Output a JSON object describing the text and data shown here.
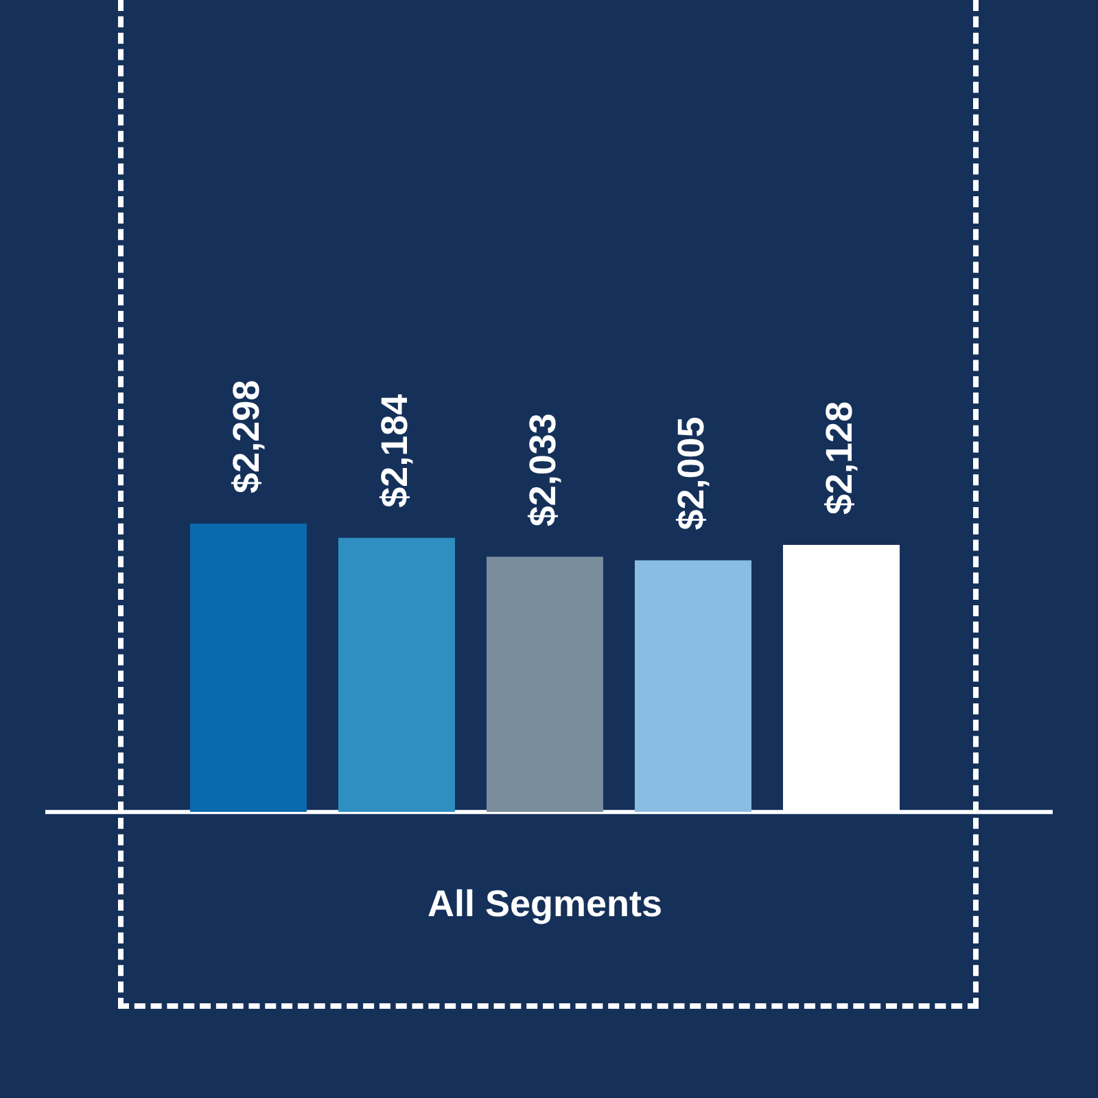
{
  "chart_data": {
    "type": "bar",
    "categories": [
      null,
      null,
      null,
      null,
      null
    ],
    "xlabel": "All Segments",
    "values": [
      2298,
      2184,
      2033,
      2005,
      2128
    ],
    "colors": [
      "#0a6aad",
      "#2e8fc0",
      "#7a8d9c",
      "#8abde2",
      "#ffffff"
    ],
    "value_labels": [
      "$2,298",
      "$2,184",
      "$2,033",
      "$2,005",
      "$2,128"
    ],
    "tick_labels": false
  }
}
